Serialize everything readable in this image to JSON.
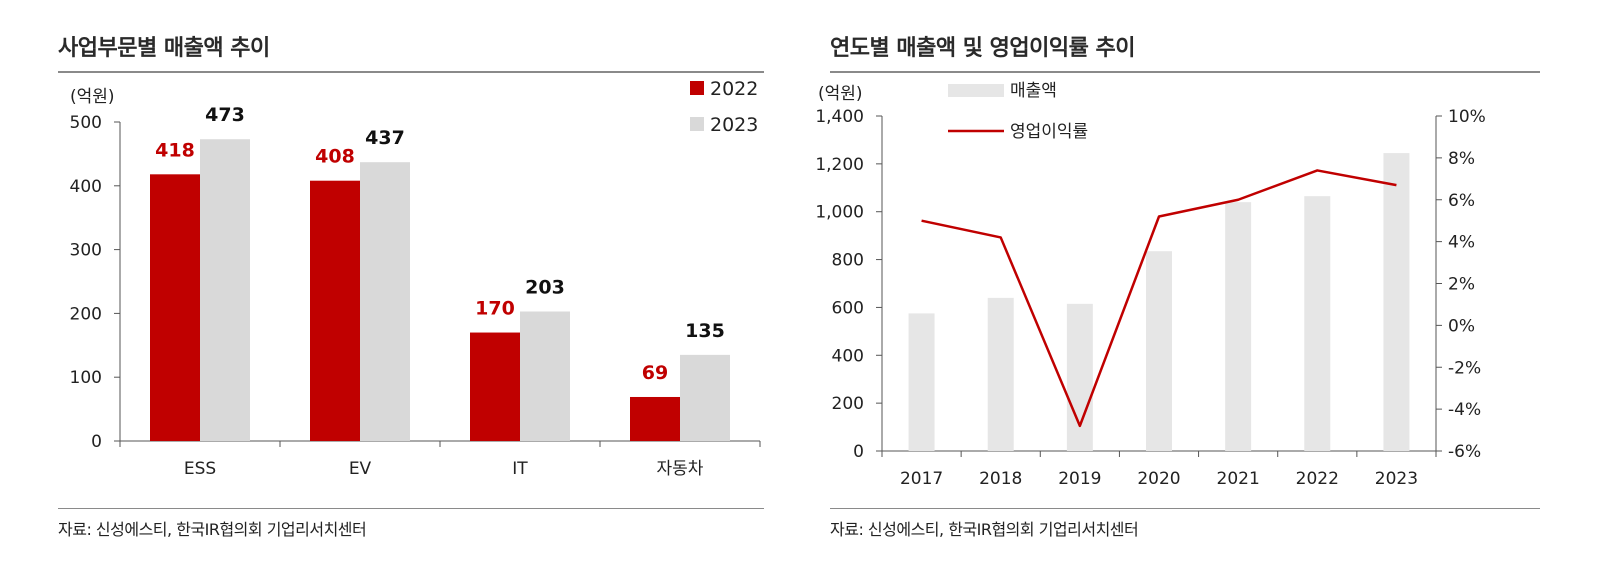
{
  "colors": {
    "red": "#c00000",
    "gray": "#d9d9d9",
    "axis": "#555555",
    "text": "#222222"
  },
  "charts": {
    "left": {
      "title": "사업부문별 매출액 추이",
      "source": "자료: 신성에스티, 한국IR협의회 기업리서치센터"
    },
    "right": {
      "title": "연도별 매출액 및 영업이익률 추이",
      "source": "자료: 신성에스티, 한국IR협의회 기업리서치센터"
    }
  },
  "chart_data": [
    {
      "type": "bar",
      "title": "사업부문별 매출액 추이",
      "unit_label": "(억원)",
      "categories": [
        "ESS",
        "EV",
        "IT",
        "자동차"
      ],
      "series": [
        {
          "name": "2022",
          "color": "#c00000",
          "values": [
            418,
            408,
            170,
            69
          ],
          "label_color": "#c00000"
        },
        {
          "name": "2023",
          "color": "#d9d9d9",
          "values": [
            473,
            437,
            203,
            135
          ],
          "label_color": "#111111"
        }
      ],
      "ylim": [
        0,
        500
      ],
      "yticks": [
        0,
        100,
        200,
        300,
        400,
        500
      ],
      "legend": "top-right",
      "grid": false
    },
    {
      "type": "bar",
      "title": "연도별 매출액 및 영업이익률 추이",
      "unit_label": "(억원)",
      "categories": [
        "2017",
        "2018",
        "2019",
        "2020",
        "2021",
        "2022",
        "2023"
      ],
      "series": [
        {
          "name": "매출액",
          "type": "bar",
          "axis": "left",
          "color": "#e6e6e6",
          "values": [
            575,
            640,
            615,
            835,
            1040,
            1065,
            1245
          ]
        },
        {
          "name": "영업이익률",
          "type": "line",
          "axis": "right",
          "color": "#c00000",
          "values": [
            5.0,
            4.2,
            -4.8,
            5.2,
            6.0,
            7.4,
            6.7
          ]
        }
      ],
      "ylim": [
        0,
        1400
      ],
      "yticks": [
        0,
        200,
        400,
        600,
        800,
        1000,
        1200,
        1400
      ],
      "ytick_labels": [
        "0",
        "200",
        "400",
        "600",
        "800",
        "1,000",
        "1,200",
        "1,400"
      ],
      "y2lim": [
        -6,
        10
      ],
      "y2ticks": [
        -6,
        -4,
        -2,
        0,
        2,
        4,
        6,
        8,
        10
      ],
      "y2tick_labels": [
        "-6%",
        "-4%",
        "-2%",
        "0%",
        "2%",
        "4%",
        "6%",
        "8%",
        "10%"
      ],
      "legend": "top-left",
      "grid": false
    }
  ]
}
